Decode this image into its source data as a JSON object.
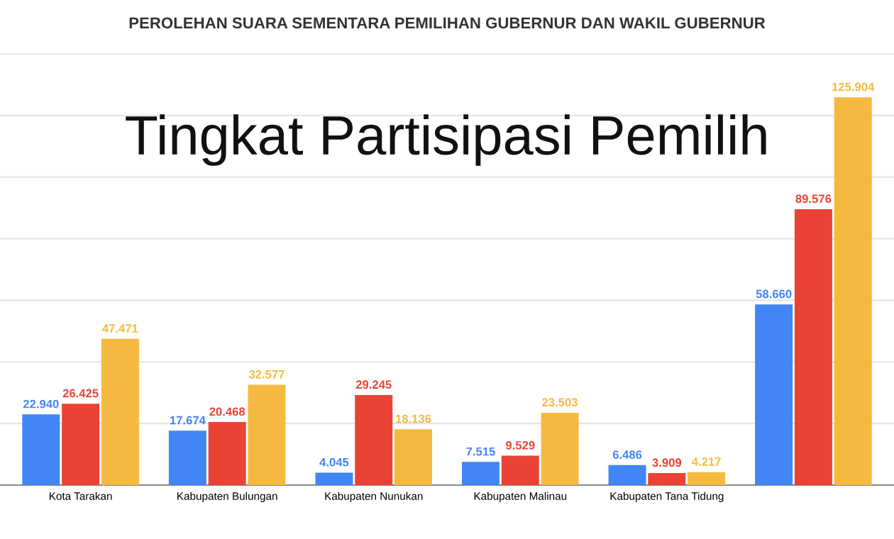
{
  "chart_data": {
    "type": "bar",
    "title": "PEROLEHAN SUARA SEMENTARA PEMILIHAN GUBERNUR DAN WAKIL GUBERNUR",
    "subtitle": "Tingkat Partisipasi Pemilih",
    "categories": [
      "Kota Tarakan",
      "Kabupaten Bulungan",
      "Kabupaten Nunukan",
      "Kabupaten Malinau",
      "Kabupaten Tana Tidung",
      null
    ],
    "series": [
      {
        "color": "#4285f4",
        "values": [
          22940,
          17674,
          4045,
          7515,
          6486,
          58660
        ],
        "value_labels": [
          "22.940",
          "17.674",
          "4.045",
          "7.515",
          "6.486",
          "58.660"
        ]
      },
      {
        "color": "#ea4335",
        "values": [
          26425,
          20468,
          29245,
          9529,
          3909,
          89576
        ],
        "value_labels": [
          "26.425",
          "20.468",
          "29.245",
          "9.529",
          "3.909",
          "89.576"
        ]
      },
      {
        "color": "#f6b940",
        "values": [
          47471,
          32577,
          18136,
          23503,
          4217,
          125904
        ],
        "value_labels": [
          "47.471",
          "32.577",
          "18.136",
          "23.503",
          "4.217",
          "125.904"
        ]
      }
    ],
    "ylim": [
      0,
      140000
    ],
    "yticks": [
      {
        "value": 0,
        "label": null
      },
      {
        "value": 20000,
        "label": null
      },
      {
        "value": 40000,
        "label": null
      },
      {
        "value": 60000,
        "label": null
      },
      {
        "value": 80000,
        "label": null
      },
      {
        "value": 100000,
        "label": null
      },
      {
        "value": 120000,
        "label": null
      },
      {
        "value": 140000,
        "label": null
      }
    ],
    "tick_labels": "x",
    "grid": "y",
    "legend": false
  }
}
